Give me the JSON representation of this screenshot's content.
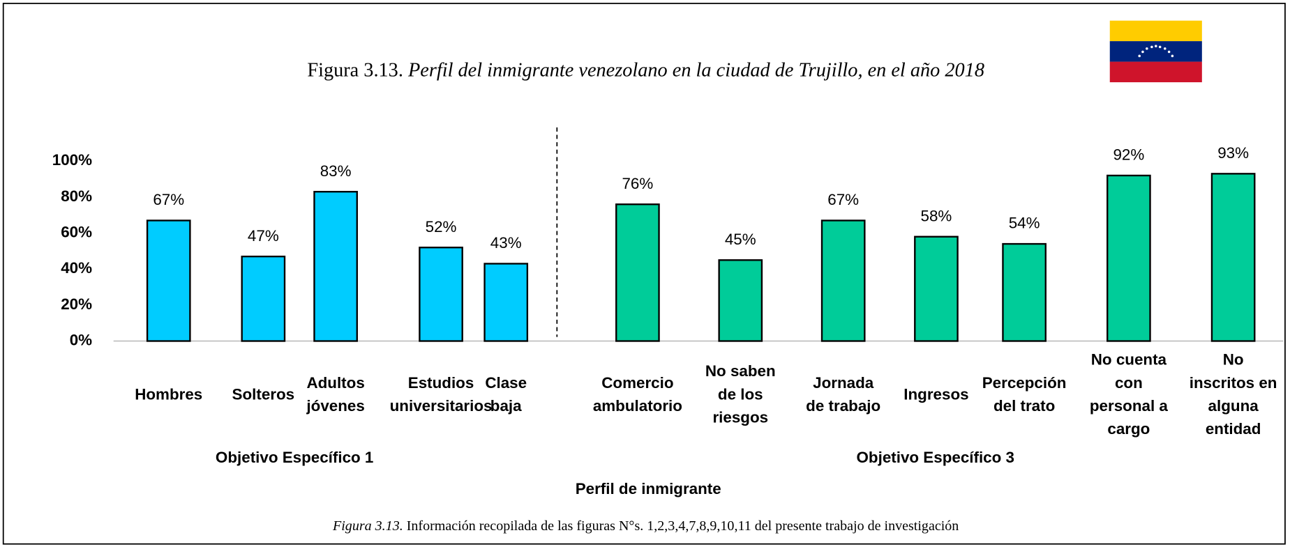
{
  "chart_data": {
    "type": "bar",
    "title": {
      "number": "Figura 3.13.",
      "text": "Perfil del inmigrante venezolano en la ciudad de Trujillo, en el año 2018"
    },
    "categories": [
      [
        "Hombres"
      ],
      [
        "Solteros"
      ],
      [
        "Adultos",
        "jóvenes"
      ],
      [
        "Estudios",
        "universitarios"
      ],
      [
        "Clase",
        "baja"
      ],
      [
        "Comercio",
        "ambulatorio"
      ],
      [
        "No saben",
        "de los",
        "riesgos"
      ],
      [
        "Jornada",
        "de trabajo"
      ],
      [
        "Ingresos"
      ],
      [
        "Percepción",
        "del trato"
      ],
      [
        "No cuenta",
        "con",
        "personal a",
        "cargo"
      ],
      [
        "No",
        "inscritos en",
        "alguna",
        "entidad"
      ]
    ],
    "values": [
      67,
      47,
      83,
      52,
      43,
      76,
      45,
      67,
      58,
      54,
      92,
      93
    ],
    "value_labels": [
      "67%",
      "47%",
      "83%",
      "52%",
      "43%",
      "76%",
      "45%",
      "67%",
      "58%",
      "54%",
      "92%",
      "93%"
    ],
    "colors": [
      "#00ccff",
      "#00ccff",
      "#00ccff",
      "#00ccff",
      "#00ccff",
      "#00cc99",
      "#00cc99",
      "#00cc99",
      "#00cc99",
      "#00cc99",
      "#00cc99",
      "#00cc99"
    ],
    "groups": [
      "Objetivo Específico 1",
      "Objetivo Específico 3"
    ],
    "xlabel": "Perfil de inmigrante",
    "ylim": [
      0,
      100
    ],
    "yticks": [
      {
        "value": 0,
        "label": "0%"
      },
      {
        "value": 20,
        "label": "20%"
      },
      {
        "value": 40,
        "label": "40%"
      },
      {
        "value": 60,
        "label": "60%"
      },
      {
        "value": 80,
        "label": "80%"
      },
      {
        "value": 100,
        "label": "100%"
      }
    ],
    "note": {
      "number": "Figura 3.13.",
      "text": "Información recopilada de las figuras N°s. 1,2,3,4,7,8,9,10,11 del presente trabajo de investigación"
    }
  }
}
